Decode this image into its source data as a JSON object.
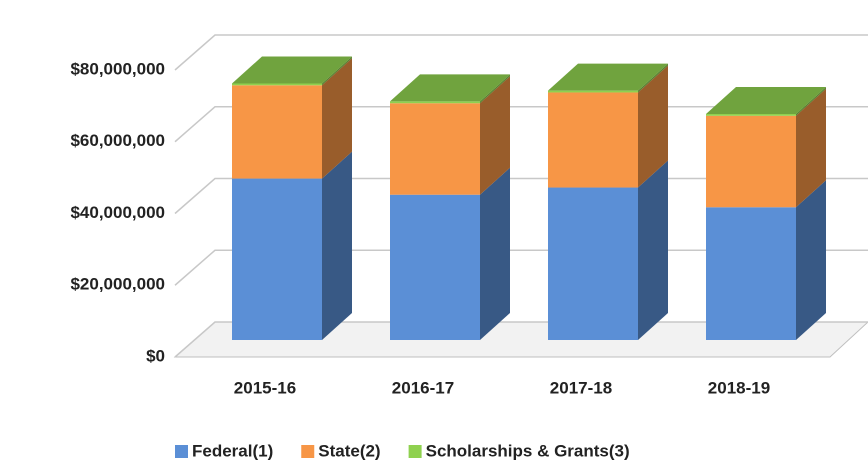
{
  "chart_data": {
    "type": "bar3d_stacked",
    "categories": [
      "2015-16",
      "2016-17",
      "2017-18",
      "2018-19"
    ],
    "series": [
      {
        "name": "Federal(1)",
        "color": "#5b8fd6",
        "values": [
          45000000,
          40500000,
          42500000,
          37000000
        ]
      },
      {
        "name": "State(2)",
        "color": "#f79646",
        "values": [
          26000000,
          25500000,
          26500000,
          25500000
        ]
      },
      {
        "name": "Scholarships & Grants(3)",
        "color": "#8fd14f",
        "values": [
          500000,
          500000,
          500000,
          500000
        ]
      }
    ],
    "ylim": [
      0,
      80000000
    ],
    "yticks": [
      {
        "value": 0,
        "label": "$0"
      },
      {
        "value": 20000000,
        "label": "$20,000,000"
      },
      {
        "value": 40000000,
        "label": "$40,000,000"
      },
      {
        "value": 60000000,
        "label": "$60,000,000"
      },
      {
        "value": 80000000,
        "label": "$80,000,000"
      }
    ],
    "grid": true,
    "legend": "bottom"
  }
}
